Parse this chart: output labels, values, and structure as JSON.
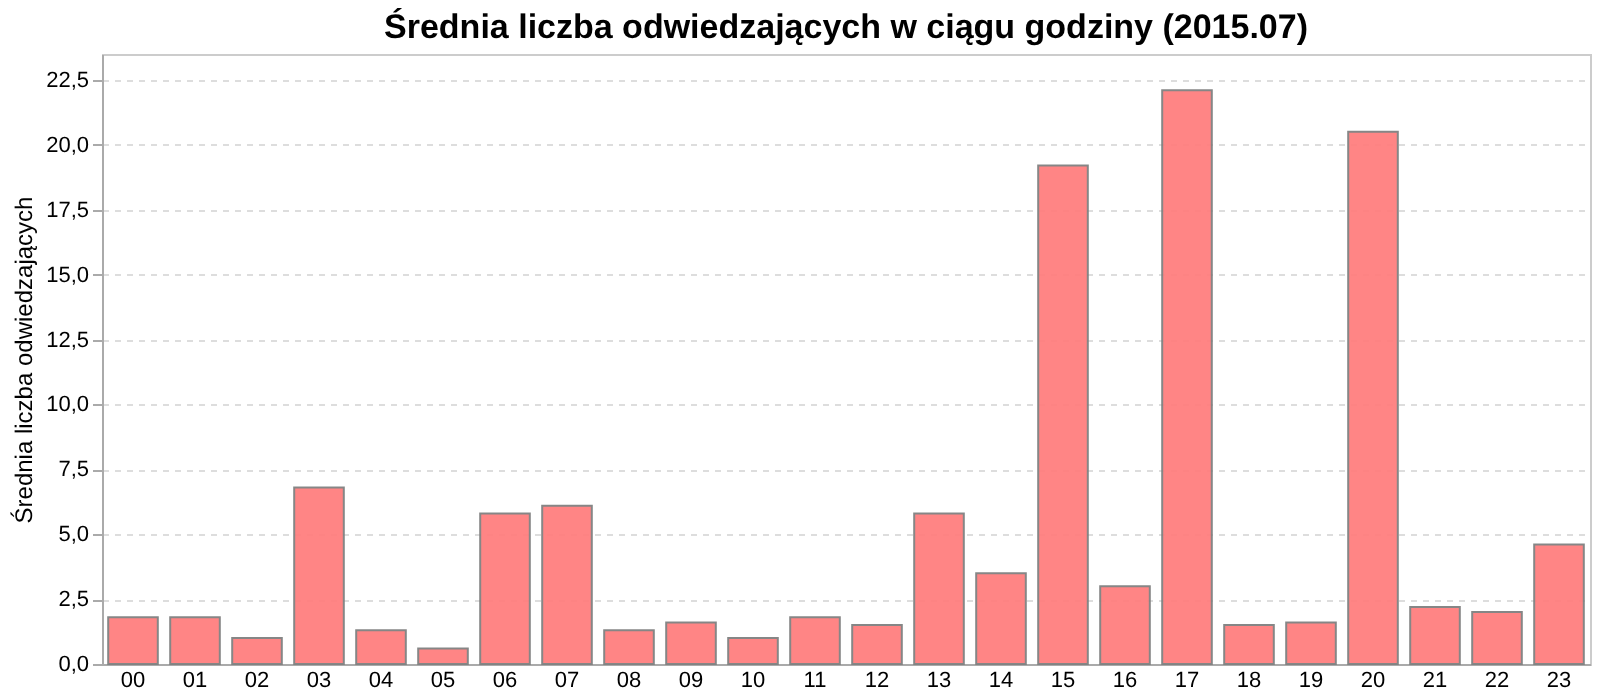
{
  "chart_data": {
    "type": "bar",
    "title": "Średnia liczba odwiedzających w ciągu godziny (2015.07)",
    "ylabel": "Średnia liczba odwiedzających",
    "categories": [
      "00",
      "01",
      "02",
      "03",
      "04",
      "05",
      "06",
      "07",
      "08",
      "09",
      "10",
      "11",
      "12",
      "13",
      "14",
      "15",
      "16",
      "17",
      "18",
      "19",
      "20",
      "21",
      "22",
      "23"
    ],
    "values": [
      1.8,
      1.8,
      1.0,
      6.8,
      1.3,
      0.6,
      5.8,
      6.1,
      1.3,
      1.6,
      1.0,
      1.8,
      1.5,
      5.8,
      3.5,
      19.2,
      3.0,
      22.1,
      1.5,
      1.6,
      20.5,
      2.2,
      2.0,
      4.6
    ],
    "color": "#ff7f7f",
    "ylim": [
      0,
      23.5
    ],
    "yticks": [
      {
        "value": 0,
        "label": "0,0"
      },
      {
        "value": 2.5,
        "label": "2,5"
      },
      {
        "value": 5,
        "label": "5,0"
      },
      {
        "value": 7.5,
        "label": "7,5"
      },
      {
        "value": 10,
        "label": "10,0"
      },
      {
        "value": 12.5,
        "label": "12,5"
      },
      {
        "value": 15,
        "label": "15,0"
      },
      {
        "value": 17.5,
        "label": "17,5"
      },
      {
        "value": 20,
        "label": "20,0"
      },
      {
        "value": 22.5,
        "label": "22,5"
      }
    ],
    "grid": "y"
  }
}
